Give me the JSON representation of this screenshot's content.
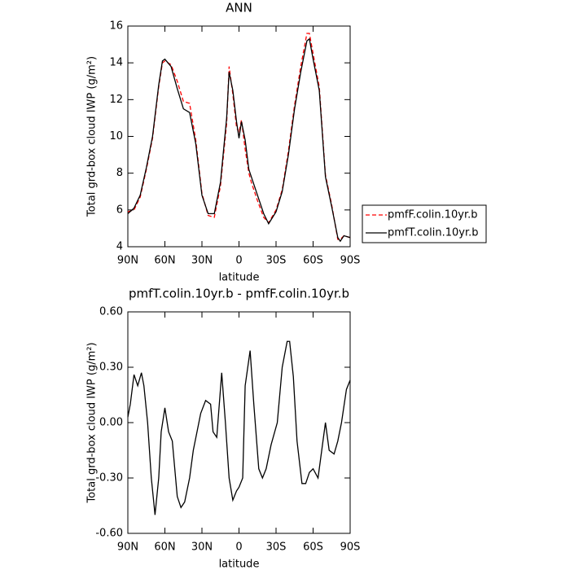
{
  "chart_data": [
    {
      "type": "line",
      "title": "ANN",
      "xlabel": "latitude",
      "ylabel": "Total grd-box cloud IWP (g/m²)",
      "x": [
        90,
        85,
        80,
        75,
        70,
        65,
        62,
        60,
        55,
        50,
        45,
        40,
        35,
        30,
        25,
        20,
        15,
        10,
        8,
        5,
        2,
        0,
        -2,
        -5,
        -8,
        -10,
        -15,
        -20,
        -24,
        -30,
        -35,
        -40,
        -45,
        -50,
        -55,
        -57,
        -60,
        -65,
        -70,
        -75,
        -80,
        -82,
        -85,
        -90
      ],
      "series": [
        {
          "name": "pmfF.colin.10yr.b",
          "color": "#ff0000",
          "style": "dashed",
          "values": [
            5.9,
            6.0,
            6.7,
            8.2,
            9.9,
            12.7,
            14.0,
            14.1,
            13.9,
            13.0,
            11.9,
            11.8,
            9.8,
            6.9,
            5.7,
            5.6,
            7.3,
            10.7,
            13.8,
            12.3,
            10.5,
            10.2,
            10.9,
            9.3,
            8.0,
            7.5,
            6.5,
            5.6,
            5.3,
            6.0,
            7.1,
            9.2,
            11.7,
            13.8,
            15.6,
            15.6,
            14.5,
            12.7,
            7.9,
            6.3,
            4.4,
            4.4,
            4.6,
            4.5
          ]
        },
        {
          "name": "pmfT.colin.10yr.b",
          "color": "#000000",
          "style": "solid",
          "values": [
            5.8,
            6.1,
            6.8,
            8.3,
            10.0,
            12.8,
            14.1,
            14.2,
            13.8,
            12.6,
            11.5,
            11.3,
            9.6,
            6.8,
            5.8,
            5.8,
            7.5,
            11.0,
            13.5,
            12.5,
            10.8,
            9.9,
            10.8,
            9.8,
            8.2,
            7.8,
            6.8,
            5.8,
            5.25,
            5.9,
            7.0,
            9.0,
            11.5,
            13.5,
            15.2,
            15.3,
            14.2,
            12.5,
            7.8,
            6.2,
            4.5,
            4.3,
            4.6,
            4.5
          ]
        }
      ],
      "xlim": [
        90,
        -90
      ],
      "xticks": [
        {
          "value": 90,
          "label": "90N"
        },
        {
          "value": 60,
          "label": "60N"
        },
        {
          "value": 30,
          "label": "30N"
        },
        0,
        {
          "value": -30,
          "label": "30S"
        },
        {
          "value": -60,
          "label": "60S"
        },
        {
          "value": -90,
          "label": "90S"
        }
      ],
      "ylim": [
        4,
        16
      ],
      "yticks": [
        4,
        6,
        8,
        10,
        12,
        14,
        16
      ],
      "legend": "right"
    },
    {
      "type": "line",
      "title": "pmfT.colin.10yr.b - pmfF.colin.10yr.b",
      "xlabel": "latitude",
      "ylabel": "Total grd-box cloud IWP (g/m²)",
      "x": [
        90,
        88,
        85,
        82,
        79,
        77,
        74,
        71,
        68,
        65,
        63,
        60,
        57,
        54,
        50,
        47,
        44,
        40,
        37,
        34,
        31,
        27,
        23,
        21,
        18,
        14,
        11,
        8,
        5,
        2,
        0,
        -3,
        -5,
        -9,
        -12,
        -16,
        -19,
        -22,
        -26,
        -31,
        -35,
        -39,
        -41,
        -44,
        -47,
        -51,
        -54,
        -57,
        -60,
        -64,
        -67,
        -70,
        -73,
        -77,
        -80,
        -83,
        -87,
        -90
      ],
      "values": [
        0.03,
        0.1,
        0.26,
        0.2,
        0.27,
        0.2,
        0.0,
        -0.3,
        -0.5,
        -0.3,
        -0.05,
        0.08,
        -0.05,
        -0.1,
        -0.4,
        -0.46,
        -0.43,
        -0.3,
        -0.15,
        -0.05,
        0.05,
        0.12,
        0.1,
        -0.05,
        -0.08,
        0.27,
        0.0,
        -0.3,
        -0.42,
        -0.37,
        -0.35,
        -0.3,
        0.2,
        0.39,
        0.1,
        -0.25,
        -0.3,
        -0.25,
        -0.12,
        0.0,
        0.3,
        0.44,
        0.44,
        0.25,
        -0.1,
        -0.33,
        -0.33,
        -0.27,
        -0.25,
        -0.3,
        -0.15,
        0.0,
        -0.15,
        -0.17,
        -0.1,
        0.0,
        0.18,
        0.23
      ],
      "color": "#000000",
      "xlim": [
        90,
        -90
      ],
      "xticks": [
        {
          "value": 90,
          "label": "90N"
        },
        {
          "value": 60,
          "label": "60N"
        },
        {
          "value": 30,
          "label": "30N"
        },
        0,
        {
          "value": -30,
          "label": "30S"
        },
        {
          "value": -60,
          "label": "60S"
        },
        {
          "value": -90,
          "label": "90S"
        }
      ],
      "ylim": [
        -0.6,
        0.6
      ],
      "yticks": [
        {
          "value": -0.6,
          "label": "-0.60"
        },
        {
          "value": -0.3,
          "label": "-0.30"
        },
        {
          "value": 0,
          "label": "0.00"
        },
        {
          "value": 0.3,
          "label": "0.30"
        },
        {
          "value": 0.6,
          "label": "0.60"
        }
      ]
    }
  ]
}
